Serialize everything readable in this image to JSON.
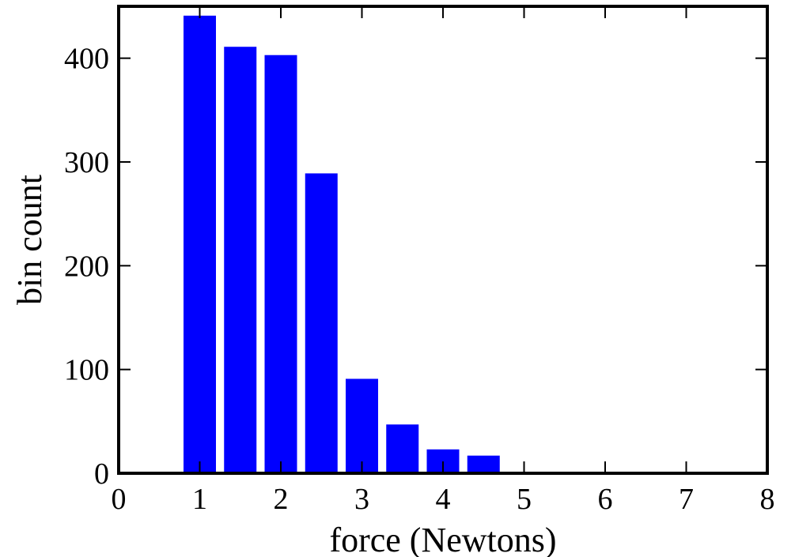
{
  "chart_data": {
    "type": "bar",
    "xlabel": "force (Newtons)",
    "ylabel": "bin count",
    "xlim": [
      0,
      8
    ],
    "ylim": [
      0,
      450
    ],
    "x_ticks": [
      0,
      1,
      2,
      3,
      4,
      5,
      6,
      7,
      8
    ],
    "y_ticks": [
      0,
      100,
      200,
      300,
      400
    ],
    "bar_width": 0.4,
    "bars": [
      {
        "x": 1.0,
        "value": 441
      },
      {
        "x": 1.5,
        "value": 411
      },
      {
        "x": 2.0,
        "value": 403
      },
      {
        "x": 2.5,
        "value": 289
      },
      {
        "x": 3.0,
        "value": 91
      },
      {
        "x": 3.5,
        "value": 47
      },
      {
        "x": 4.0,
        "value": 23
      },
      {
        "x": 4.5,
        "value": 17
      },
      {
        "x": 5.0,
        "value": 1
      }
    ],
    "bar_color": "#0000ff",
    "grid": false,
    "legend": "none"
  }
}
